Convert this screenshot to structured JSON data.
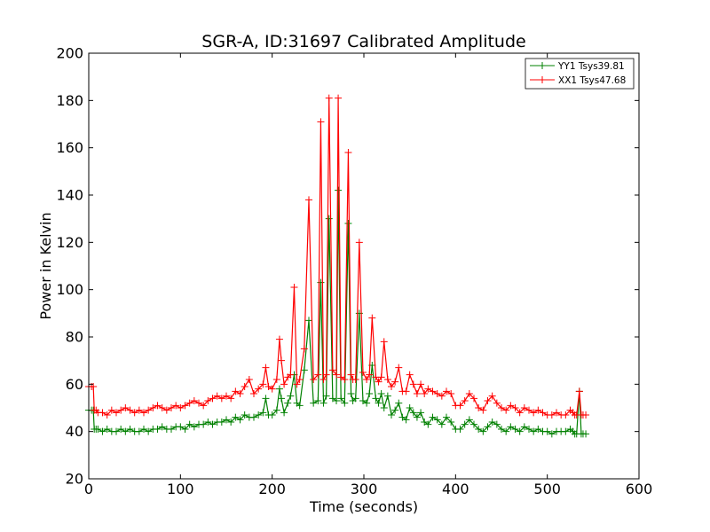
{
  "chart_data": {
    "type": "line",
    "title": "SGR-A, ID:31697 Calibrated Amplitude",
    "xlabel": "Time (seconds)",
    "ylabel": "Power in Kelvin",
    "xlim": [
      0,
      600
    ],
    "ylim": [
      20,
      200
    ],
    "xticks": [
      "0",
      "100",
      "200",
      "300",
      "400",
      "500",
      "600"
    ],
    "yticks": [
      "20",
      "40",
      "60",
      "80",
      "100",
      "120",
      "140",
      "160",
      "180",
      "200"
    ],
    "grid": false,
    "legend_position": "top-right",
    "marker": "+",
    "series": [
      {
        "name": "YY1 Tsys39.81",
        "color": "#008000",
        "x": [
          0,
          3,
          5,
          6,
          8,
          10,
          15,
          20,
          25,
          30,
          35,
          40,
          45,
          50,
          55,
          60,
          65,
          70,
          75,
          80,
          85,
          90,
          95,
          100,
          105,
          110,
          115,
          120,
          125,
          130,
          135,
          140,
          145,
          150,
          155,
          160,
          165,
          170,
          175,
          180,
          185,
          190,
          193,
          196,
          200,
          205,
          208,
          210,
          213,
          217,
          220,
          224,
          227,
          230,
          235,
          240,
          245,
          250,
          253,
          256,
          259,
          262,
          266,
          270,
          272,
          275,
          279,
          283,
          286,
          288,
          291,
          295,
          299,
          303,
          306,
          309,
          313,
          316,
          319,
          322,
          326,
          330,
          334,
          338,
          342,
          346,
          350,
          354,
          358,
          362,
          366,
          370,
          375,
          380,
          385,
          390,
          395,
          400,
          405,
          410,
          415,
          420,
          425,
          430,
          435,
          440,
          445,
          450,
          455,
          460,
          465,
          470,
          475,
          480,
          485,
          490,
          495,
          500,
          505,
          510,
          515,
          520,
          525,
          528,
          530,
          532,
          535,
          537,
          539,
          542
        ],
        "values": [
          49,
          49,
          49,
          41,
          41,
          41,
          40,
          41,
          40,
          40,
          41,
          40,
          41,
          40,
          40,
          41,
          40,
          41,
          41,
          42,
          41,
          41,
          42,
          42,
          41,
          43,
          42,
          43,
          43,
          44,
          43,
          44,
          44,
          45,
          44,
          46,
          45,
          47,
          46,
          46,
          47,
          48,
          54,
          47,
          47,
          49,
          58,
          54,
          48,
          52,
          55,
          64,
          52,
          51,
          66,
          87,
          52,
          53,
          103,
          52,
          55,
          130,
          54,
          53,
          142,
          54,
          52,
          128,
          56,
          53,
          54,
          90,
          53,
          52,
          56,
          68,
          54,
          52,
          56,
          50,
          55,
          47,
          49,
          52,
          46,
          45,
          50,
          48,
          46,
          48,
          44,
          43,
          46,
          45,
          43,
          46,
          44,
          41,
          41,
          43,
          45,
          43,
          41,
          40,
          42,
          44,
          43,
          41,
          40,
          42,
          41,
          40,
          42,
          41,
          40,
          41,
          40,
          40,
          39,
          40,
          40,
          40,
          41,
          40,
          39,
          39,
          57,
          39,
          39,
          39
        ]
      },
      {
        "name": "XX1 Tsys47.68",
        "color": "#ff0000",
        "x": [
          0,
          3,
          5,
          6,
          8,
          10,
          15,
          20,
          25,
          30,
          35,
          40,
          45,
          50,
          55,
          60,
          65,
          70,
          75,
          80,
          85,
          90,
          95,
          100,
          105,
          110,
          115,
          120,
          125,
          130,
          135,
          140,
          145,
          150,
          155,
          160,
          165,
          170,
          175,
          180,
          185,
          190,
          193,
          196,
          200,
          205,
          208,
          210,
          213,
          217,
          220,
          224,
          227,
          230,
          235,
          240,
          245,
          250,
          253,
          256,
          259,
          262,
          266,
          270,
          272,
          275,
          279,
          283,
          286,
          288,
          291,
          295,
          299,
          303,
          306,
          309,
          313,
          316,
          319,
          322,
          326,
          330,
          334,
          338,
          342,
          346,
          350,
          354,
          358,
          362,
          366,
          370,
          375,
          380,
          385,
          390,
          395,
          400,
          405,
          410,
          415,
          420,
          425,
          430,
          435,
          440,
          445,
          450,
          455,
          460,
          465,
          470,
          475,
          480,
          485,
          490,
          495,
          500,
          505,
          510,
          515,
          520,
          525,
          528,
          530,
          532,
          535,
          537,
          539,
          542
        ],
        "values": [
          59,
          59,
          59,
          49,
          49,
          48,
          48,
          47,
          49,
          48,
          49,
          50,
          49,
          48,
          49,
          48,
          49,
          50,
          51,
          50,
          49,
          50,
          51,
          50,
          51,
          52,
          53,
          52,
          51,
          53,
          54,
          55,
          54,
          55,
          54,
          57,
          56,
          59,
          62,
          56,
          58,
          60,
          67,
          59,
          58,
          62,
          79,
          70,
          60,
          63,
          64,
          101,
          60,
          62,
          75,
          138,
          62,
          64,
          171,
          62,
          64,
          181,
          66,
          64,
          181,
          63,
          62,
          158,
          64,
          62,
          62,
          120,
          65,
          62,
          64,
          88,
          63,
          61,
          63,
          78,
          62,
          59,
          61,
          67,
          57,
          57,
          64,
          60,
          56,
          60,
          56,
          58,
          57,
          56,
          55,
          57,
          56,
          51,
          51,
          53,
          56,
          54,
          50,
          49,
          53,
          55,
          52,
          50,
          49,
          51,
          50,
          48,
          50,
          49,
          48,
          49,
          48,
          47,
          47,
          48,
          47,
          47,
          49,
          48,
          47,
          47,
          57,
          47,
          47,
          47
        ]
      }
    ]
  }
}
